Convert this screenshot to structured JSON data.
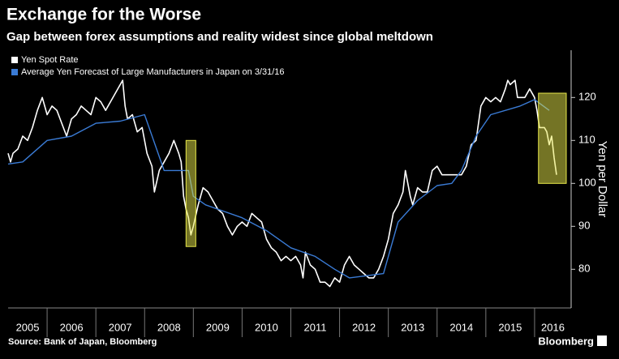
{
  "chart_data": {
    "type": "line",
    "title": "Exchange for the Worse",
    "subtitle": "Gap between forex assumptions and reality widest since global meltdown",
    "y_label": "Yen per Dollar",
    "source": "Source: Bank of Japan, Bloomberg",
    "brand": "Bloomberg",
    "xlim": [
      2005.2,
      2016.75
    ],
    "ylim": [
      71,
      131
    ],
    "xticks": [
      2005,
      2006,
      2007,
      2008,
      2009,
      2010,
      2011,
      2012,
      2013,
      2014,
      2015,
      2016
    ],
    "yticks": [
      80,
      90,
      100,
      110,
      120
    ],
    "grid": false,
    "legend": "top-left",
    "highlight_color": "#e8e84a",
    "highlights": [
      {
        "x": [
          2008.85,
          2009.05
        ],
        "y": [
          85.3,
          110
        ]
      },
      {
        "x": [
          2016.08,
          2016.65
        ],
        "y": [
          100,
          121
        ]
      }
    ],
    "series": [
      {
        "name": "Yen Spot Rate",
        "color": "#ffffff",
        "x": [
          2005.2,
          2005.25,
          2005.3,
          2005.4,
          2005.5,
          2005.6,
          2005.7,
          2005.8,
          2005.9,
          2005.95,
          2006.0,
          2006.1,
          2006.2,
          2006.3,
          2006.4,
          2006.5,
          2006.6,
          2006.7,
          2006.8,
          2006.9,
          2007.0,
          2007.1,
          2007.2,
          2007.3,
          2007.4,
          2007.5,
          2007.55,
          2007.6,
          2007.65,
          2007.75,
          2007.85,
          2007.95,
          2008.05,
          2008.15,
          2008.2,
          2008.3,
          2008.4,
          2008.5,
          2008.6,
          2008.7,
          2008.75,
          2008.8,
          2008.85,
          2008.9,
          2008.95,
          2009.0,
          2009.1,
          2009.2,
          2009.3,
          2009.4,
          2009.5,
          2009.6,
          2009.7,
          2009.8,
          2009.9,
          2010.0,
          2010.1,
          2010.2,
          2010.3,
          2010.4,
          2010.5,
          2010.6,
          2010.7,
          2010.8,
          2010.9,
          2011.0,
          2011.1,
          2011.2,
          2011.25,
          2011.3,
          2011.4,
          2011.5,
          2011.6,
          2011.7,
          2011.8,
          2011.9,
          2012.0,
          2012.1,
          2012.2,
          2012.3,
          2012.4,
          2012.5,
          2012.6,
          2012.7,
          2012.8,
          2012.9,
          2013.0,
          2013.1,
          2013.2,
          2013.3,
          2013.35,
          2013.45,
          2013.5,
          2013.6,
          2013.7,
          2013.8,
          2013.9,
          2014.0,
          2014.1,
          2014.2,
          2014.3,
          2014.4,
          2014.5,
          2014.6,
          2014.7,
          2014.8,
          2014.9,
          2015.0,
          2015.1,
          2015.2,
          2015.3,
          2015.4,
          2015.45,
          2015.5,
          2015.6,
          2015.65,
          2015.7,
          2015.8,
          2015.9,
          2016.0,
          2016.05,
          2016.1,
          2016.2,
          2016.25,
          2016.3,
          2016.35,
          2016.4,
          2016.45
        ],
        "values": [
          107,
          105,
          107,
          108,
          111,
          110,
          113,
          117,
          120,
          118,
          116,
          118,
          117,
          114,
          111,
          115,
          116,
          118,
          117,
          116,
          120,
          119,
          117,
          119,
          121,
          123,
          124,
          118,
          115,
          116,
          112,
          113,
          107,
          104,
          98,
          103,
          105,
          107,
          110,
          107,
          105,
          97,
          94,
          92,
          88,
          90,
          95,
          99,
          98,
          96,
          94,
          93,
          90,
          88,
          90,
          91,
          90,
          93,
          92,
          91,
          87,
          85,
          84,
          82,
          83,
          82,
          83,
          81,
          78,
          84,
          81,
          80,
          77,
          77,
          76,
          78,
          77,
          81,
          83,
          81,
          80,
          79,
          78,
          78,
          80,
          83,
          87,
          93,
          95,
          98,
          103,
          97,
          95,
          99,
          98,
          98,
          103,
          104,
          102,
          102,
          102,
          102,
          102,
          104,
          109,
          110,
          118,
          120,
          119,
          120,
          119,
          122,
          124,
          123,
          124,
          120,
          120,
          120,
          122,
          120,
          117,
          113,
          113,
          112,
          109,
          111,
          106,
          102
        ]
      },
      {
        "name": "Average Yen Forecast of Large Manufacturers in Japan on 3/31/16",
        "color": "#3a7bd5",
        "x": [
          2005.2,
          2005.5,
          2006.0,
          2006.5,
          2007.0,
          2007.5,
          2008.0,
          2008.4,
          2008.9,
          2009.0,
          2009.25,
          2009.5,
          2010.0,
          2010.5,
          2011.0,
          2011.5,
          2011.9,
          2012.2,
          2012.9,
          2013.2,
          2013.6,
          2014.0,
          2014.3,
          2014.5,
          2014.8,
          2015.1,
          2015.7,
          2016.0,
          2016.3
        ],
        "values": [
          104.5,
          105,
          110,
          111,
          114,
          114.5,
          116,
          103,
          103,
          97,
          95,
          94,
          92,
          89,
          85,
          83,
          80,
          78,
          79,
          91,
          96,
          99.5,
          100,
          103,
          111,
          116,
          118,
          119.5,
          117
        ]
      }
    ]
  }
}
